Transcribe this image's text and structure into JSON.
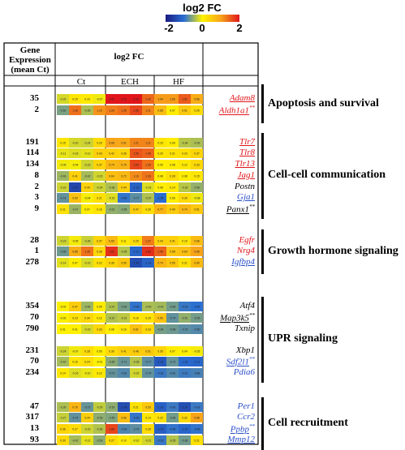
{
  "colorbar": {
    "title": "log2 FC",
    "ticks": [
      "-2",
      "0",
      "2"
    ],
    "colors": [
      "#1a1a80",
      "#2a6fd4",
      "#fff200",
      "#f7a21a",
      "#e0161b"
    ]
  },
  "header": {
    "gene_expression": [
      "Gene",
      "Expression",
      "(mean Ct)"
    ],
    "log2fc": "log2 FC",
    "groups": [
      "Ct",
      "ECH",
      "HF"
    ]
  },
  "chart_data": {
    "type": "heatmap",
    "colorbar_range": [
      -2,
      2
    ],
    "columns": [
      "Ct",
      "Ct",
      "Ct",
      "Ct",
      "ECH",
      "ECH",
      "ECH",
      "ECH",
      "HF",
      "HF",
      "HF",
      "HF"
    ],
    "categories": [
      {
        "name": "Apoptosis and survival",
        "genes": [
          0,
          1
        ]
      },
      {
        "name": "Cell-cell communication",
        "genes": [
          2,
          3,
          4,
          5,
          6,
          7,
          8
        ]
      },
      {
        "name": "Growth hormone signaling",
        "genes": [
          9,
          10,
          11
        ]
      },
      {
        "name": "UPR signaling",
        "genes": [
          12,
          13,
          14,
          15,
          16,
          17
        ]
      },
      {
        "name": "Cell recruitment",
        "genes": [
          18,
          19,
          20,
          21
        ]
      }
    ],
    "rows": [
      {
        "ct": "35",
        "gene": "Adam8",
        "color": "#e0161b",
        "underline": true,
        "mark": "",
        "values": [
          -0.2,
          0.15,
          0.1,
          -0.07,
          2.01,
          2.1,
          2.16,
          1.42,
          1.04,
          1.06,
          1.51,
          0.86
        ]
      },
      {
        "ct": "2",
        "gene": "Aldh1a1",
        "color": "#e0161b",
        "underline": true,
        "mark": "**",
        "values": [
          -0.62,
          1.36,
          -0.39,
          1.1,
          1.26,
          1.35,
          1.65,
          1.21,
          0.68,
          0.07,
          0.51,
          0.26
        ]
      },
      {
        "ct": "191",
        "gene": "Tlr7",
        "color": "#e0161b",
        "underline": true,
        "mark": "",
        "values": [
          0.15,
          -0.2,
          -0.24,
          0.29,
          0.96,
          0.91,
          1.21,
          1.21,
          0.15,
          0.06,
          -0.34,
          -0.39
        ]
      },
      {
        "ct": "114",
        "gene": "Tlr8",
        "color": "#e0161b",
        "underline": true,
        "mark": "",
        "values": [
          -0.11,
          -0.16,
          -0.12,
          0.43,
          0.42,
          0.36,
          1.55,
          1.45,
          0.2,
          0.21,
          0.23,
          0.37
        ]
      },
      {
        "ct": "134",
        "gene": "Tlr13",
        "color": "#e0161b",
        "underline": true,
        "mark": "",
        "values": [
          -0.06,
          -0.04,
          -0.23,
          0.37,
          0.74,
          0.79,
          1.65,
          1.35,
          0.05,
          0.08,
          0.12,
          0.33
        ]
      },
      {
        "ct": "8",
        "gene": "Jag1",
        "color": "#e0161b",
        "underline": true,
        "mark": "",
        "values": [
          -0.46,
          0.41,
          -0.42,
          -0.22,
          0.64,
          0.72,
          1.16,
          1.33,
          0.08,
          0.28,
          0.08,
          0.15
        ]
      },
      {
        "ct": "2",
        "gene": "Postn",
        "color": "#000000",
        "underline": false,
        "mark": "",
        "values": [
          -0.23,
          -1.47,
          0.4,
          -0.24,
          -0.38,
          0.44,
          -1.15,
          -0.16,
          0.08,
          0.14,
          -0.33,
          -0.5
        ]
      },
      {
        "ct": "3",
        "gene": "Gja1",
        "color": "#2a4fc8",
        "underline": true,
        "mark": "",
        "values": [
          -0.73,
          0.6,
          -0.04,
          0.21,
          -0.15,
          -0.96,
          -0.77,
          -0.37,
          -1.05,
          0.06,
          0.3,
          -0.08
        ]
      },
      {
        "ct": "9",
        "gene": "Panx1",
        "color": "#000000",
        "underline": true,
        "mark": "**",
        "values": [
          0.21,
          -0.47,
          0.07,
          0.16,
          -0.51,
          -0.55,
          0.47,
          0.26,
          0.77,
          0.49,
          0.74,
          0.51
        ]
      },
      {
        "ct": "28",
        "gene": "Egfr",
        "color": "#e0161b",
        "underline": false,
        "mark": "",
        "values": [
          -0.23,
          -0.05,
          -0.26,
          0.37,
          0.69,
          0.11,
          0.29,
          1.27,
          0.43,
          0.41,
          0.19,
          0.68
        ]
      },
      {
        "ct": "1",
        "gene": "Nrg4",
        "color": "#e0161b",
        "underline": false,
        "mark": "",
        "values": [
          -0.68,
          0.86,
          1.35,
          0.36,
          1.81,
          -0.35,
          -1.11,
          1.83,
          1.46,
          0.58,
          0.64,
          0.98
        ]
      },
      {
        "ct": "278",
        "gene": "Igfbp4",
        "color": "#2a4fc8",
        "underline": true,
        "mark": "",
        "values": [
          -0.14,
          0.07,
          -0.19,
          0.22,
          0.36,
          0.55,
          -1.4,
          -1.14,
          0.74,
          0.55,
          0.21,
          0.69
        ]
      },
      {
        "ct": "354",
        "gene": "Atf4",
        "color": "#000000",
        "underline": false,
        "mark": "",
        "values": [
          -0.02,
          0.47,
          -0.46,
          0.09,
          -0.37,
          -0.64,
          -0.96,
          -0.4,
          -0.43,
          -0.66,
          -0.93,
          -0.99
        ]
      },
      {
        "ct": "70",
        "gene": "Map3k5",
        "color": "#000000",
        "underline": true,
        "mark": "**",
        "values": [
          -0.02,
          0.23,
          0.34,
          0.12,
          -0.37,
          -0.31,
          0.16,
          0.2,
          0.59,
          -0.74,
          -0.51,
          -0.65
        ]
      },
      {
        "ct": "790",
        "gene": "Txnip",
        "color": "#000000",
        "underline": false,
        "mark": "",
        "values": [
          0.01,
          0.01,
          -0.19,
          0.33,
          0.08,
          0.16,
          0.61,
          0.33,
          -0.64,
          -0.68,
          -0.76,
          -0.8
        ]
      },
      {
        "ct": "231",
        "gene": "Xbp1",
        "color": "#000000",
        "underline": false,
        "mark": "",
        "values": [
          -0.24,
          -0.07,
          0.28,
          0.05,
          0.3,
          0.41,
          0.48,
          0.51,
          0.35,
          0.07,
          0.04,
          -0.05
        ]
      },
      {
        "ct": "70",
        "gene": "Sdf2l1",
        "color": "#2a4fc8",
        "underline": true,
        "mark": "**",
        "values": [
          -0.42,
          0.16,
          0.24,
          -0.01,
          -0.55,
          -0.71,
          -0.35,
          -0.77,
          -1.26,
          -0.72,
          -1.06,
          -1.11
        ]
      },
      {
        "ct": "234",
        "gene": "Pdia6",
        "color": "#2a4fc8",
        "underline": false,
        "mark": "",
        "values": [
          0.14,
          -0.16,
          -0.1,
          0.12,
          -0.73,
          -0.81,
          -0.22,
          -0.74,
          -0.92,
          -0.81,
          -0.91,
          -0.86
        ]
      },
      {
        "ct": "47",
        "gene": "Per1",
        "color": "#2a4fc8",
        "underline": false,
        "mark": "",
        "values": [
          -0.39,
          0.76,
          -0.72,
          -0.29,
          -0.53,
          -1.4,
          0.21,
          0.53,
          -1.16,
          -0.92,
          -1.37,
          -0.92
        ]
      },
      {
        "ct": "317",
        "gene": "Ccr2",
        "color": "#2a4fc8",
        "underline": false,
        "mark": "",
        "values": [
          -0.27,
          -0.74,
          0.44,
          -0.53,
          -0.59,
          0.66,
          -0.95,
          0.14,
          0.22,
          -0.66,
          0.32,
          0.98
        ]
      },
      {
        "ct": "13",
        "gene": "Ppbp",
        "color": "#2a4fc8",
        "underline": true,
        "mark": "**",
        "values": [
          0.36,
          0.27,
          -0.23,
          -0.36,
          1.66,
          -0.83,
          -0.76,
          0.28,
          -1.19,
          -0.96,
          -1.1,
          -0.96
        ]
      },
      {
        "ct": "93",
        "gene": "Mmp12",
        "color": "#2a4fc8",
        "underline": true,
        "mark": "",
        "values": [
          0.3,
          -0.42,
          -0.12,
          -0.53,
          0.27,
          0.1,
          -0.1,
          -0.21,
          -0.93,
          -0.35,
          -0.66,
          0.21
        ]
      }
    ]
  }
}
